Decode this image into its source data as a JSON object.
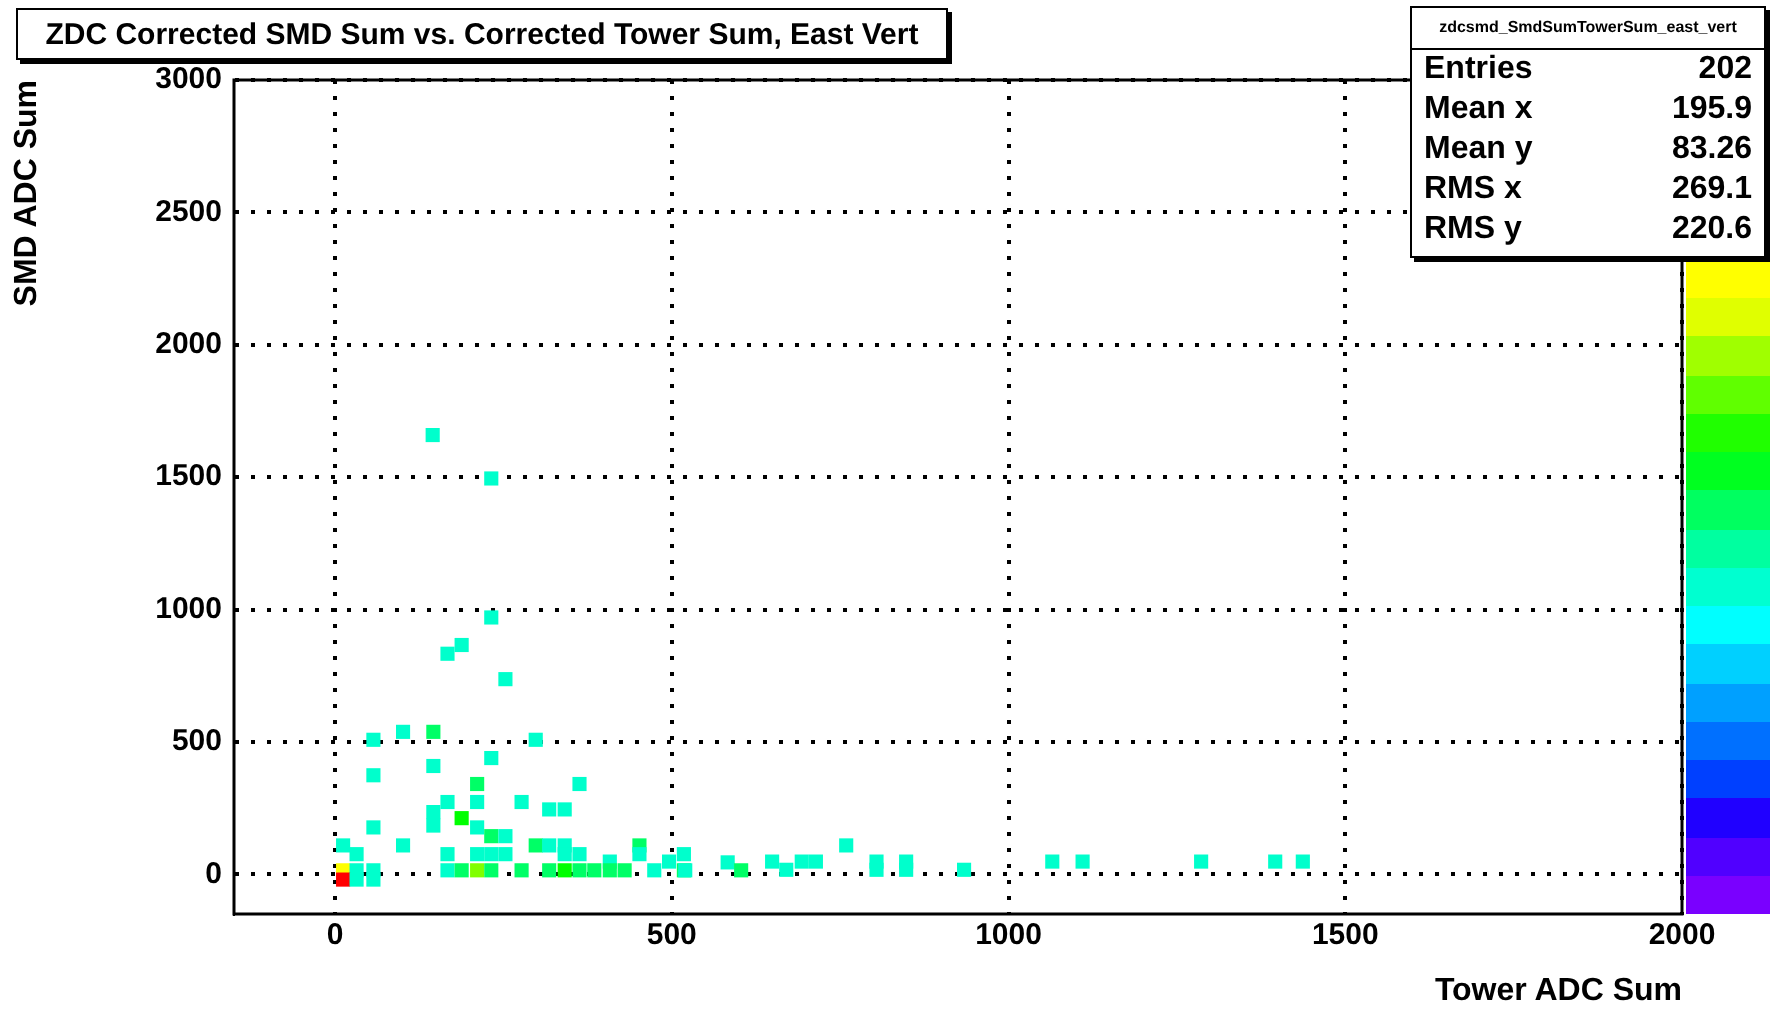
{
  "chart_data": {
    "type": "scatter",
    "title": "ZDC Corrected SMD Sum vs. Corrected Tower Sum, East Vert",
    "xlabel": "Tower ADC Sum",
    "ylabel": "SMD ADC Sum",
    "annotations": [
      "zdcsmd_SmdSumTowerSum_east_vert",
      "Entries 202",
      "Mean x 195.9",
      "Mean y 83.26",
      "RMS x 269.1",
      "RMS y 220.6"
    ],
    "x": [
      145,
      232,
      232,
      188,
      167,
      253,
      57,
      101,
      146,
      298,
      232,
      57,
      146,
      211,
      363,
      167,
      211,
      277,
      318,
      341,
      146,
      146,
      57,
      188,
      211,
      232,
      253,
      12,
      101,
      298,
      318,
      341,
      452,
      32,
      167,
      211,
      232,
      253,
      341,
      363,
      452,
      408,
      496,
      518,
      12,
      32,
      57,
      167,
      188,
      211,
      232,
      277,
      318,
      341,
      363,
      385,
      408,
      430,
      474,
      518,
      12,
      32,
      57,
      520,
      583,
      603,
      649,
      670,
      693,
      714,
      759,
      804,
      804,
      848,
      848,
      934,
      1065,
      1110,
      1286,
      1396,
      1437
    ],
    "values": [
      1659,
      1495,
      970,
      866,
      833,
      737,
      508,
      538,
      538,
      508,
      439,
      374,
      409,
      341,
      341,
      273,
      273,
      273,
      245,
      245,
      235,
      184,
      177,
      212,
      177,
      144,
      144,
      109,
      109,
      109,
      109,
      109,
      109,
      76,
      76,
      76,
      76,
      76,
      76,
      76,
      76,
      48,
      48,
      76,
      15,
      15,
      15,
      15,
      15,
      15,
      15,
      15,
      15,
      15,
      15,
      15,
      15,
      15,
      15,
      15,
      -20,
      -20,
      -20,
      15,
      45,
      15,
      48,
      17,
      48,
      48,
      109,
      48,
      17,
      48,
      17,
      17,
      48,
      48,
      48,
      48,
      48
    ],
    "colors": [
      "#00ffcc",
      "#00ffcc",
      "#00ffcc",
      "#00ffcc",
      "#00ffcc",
      "#00ffcc",
      "#00ffcc",
      "#00ffcc",
      "#00ff66",
      "#00ffcc",
      "#00ffcc",
      "#00ffcc",
      "#00ffcc",
      "#00ff66",
      "#00ffcc",
      "#00ffcc",
      "#00ffcc",
      "#00ffcc",
      "#00ffcc",
      "#00ffcc",
      "#00ffcc",
      "#00ffcc",
      "#00ffcc",
      "#00ff00",
      "#00ffcc",
      "#00ff66",
      "#00ffcc",
      "#00ffcc",
      "#00ffcc",
      "#00ff66",
      "#00ffcc",
      "#00ffcc",
      "#00ff66",
      "#00ffcc",
      "#00ffcc",
      "#00ffcc",
      "#00ffcc",
      "#00ffcc",
      "#00ffcc",
      "#00ffcc",
      "#00ffcc",
      "#00ffcc",
      "#00ffcc",
      "#00ffcc",
      "#ffff00",
      "#00ffcc",
      "#00ffcc",
      "#00ffcc",
      "#00ff66",
      "#80ff00",
      "#00ff66",
      "#00ff66",
      "#00ff66",
      "#00ff00",
      "#00ff66",
      "#00ff66",
      "#00ff66",
      "#00ff66",
      "#00ffcc",
      "#00ff66",
      "#ff0000",
      "#00ffcc",
      "#00ffcc",
      "#00ffcc",
      "#00ffcc",
      "#00ff66",
      "#00ffcc",
      "#00ffcc",
      "#00ffcc",
      "#00ffcc",
      "#00ffcc",
      "#00ffcc",
      "#00ffcc",
      "#00ffcc",
      "#00ffcc",
      "#00ffcc",
      "#00ffcc",
      "#00ffcc",
      "#00ffcc",
      "#00ffcc",
      "#00ffcc"
    ],
    "marker": "square",
    "grid": true,
    "legend": false,
    "xlim": [
      -150,
      2000
    ],
    "ylim": [
      -150,
      3000
    ],
    "xticks": [
      0,
      500,
      1000,
      1500,
      2000
    ],
    "yticks": [
      0,
      500,
      1000,
      1500,
      2000,
      2500,
      3000
    ]
  }
}
